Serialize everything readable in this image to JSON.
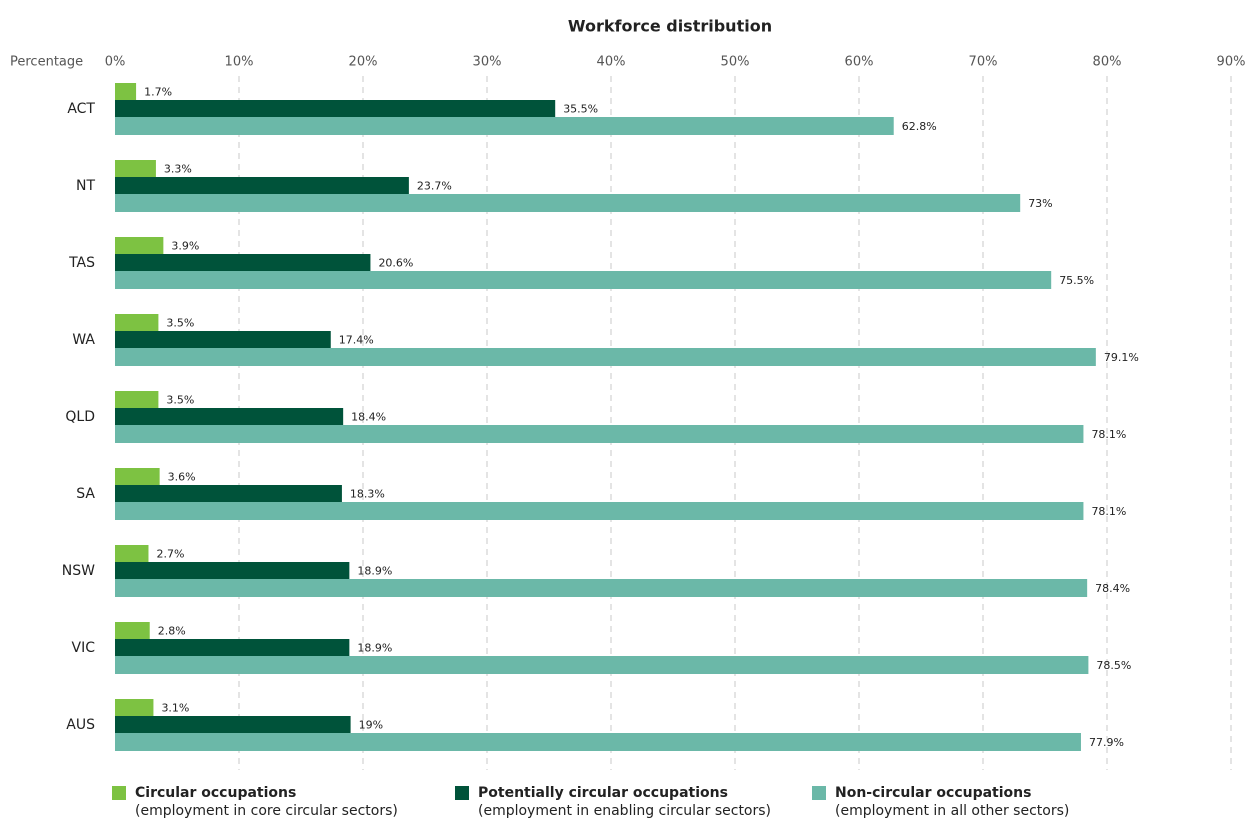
{
  "chart_data": {
    "type": "bar",
    "orientation": "horizontal",
    "title": "Workforce distribution",
    "x_label": "Percentage",
    "categories": [
      "ACT",
      "NT",
      "TAS",
      "WA",
      "QLD",
      "SA",
      "NSW",
      "VIC",
      "AUS"
    ],
    "series": [
      {
        "name": "Circular occupations",
        "description": "(employment in core circular sectors)",
        "color": "#7dc242",
        "values": [
          1.7,
          3.3,
          3.9,
          3.5,
          3.5,
          3.6,
          2.7,
          2.8,
          3.1
        ],
        "value_labels": [
          "1.7%",
          "3.3%",
          "3.9%",
          "3.5%",
          "3.5%",
          "3.6%",
          "2.7%",
          "2.8%",
          "3.1%"
        ]
      },
      {
        "name": "Potentially circular occupations",
        "description": "(employment in enabling circular sectors)",
        "color": "#00533a",
        "values": [
          35.5,
          23.7,
          20.6,
          17.4,
          18.4,
          18.3,
          18.9,
          18.9,
          19
        ],
        "value_labels": [
          "35.5%",
          "23.7%",
          "20.6%",
          "17.4%",
          "18.4%",
          "18.3%",
          "18.9%",
          "18.9%",
          "19%"
        ]
      },
      {
        "name": "Non-circular occupations",
        "description": "(employment in all other sectors)",
        "color": "#6bb8a8",
        "values": [
          62.8,
          73,
          75.5,
          79.1,
          78.1,
          78.1,
          78.4,
          78.5,
          77.9
        ],
        "value_labels": [
          "62.8%",
          "73%",
          "75.5%",
          "79.1%",
          "78.1%",
          "78.1%",
          "78.4%",
          "78.5%",
          "77.9%"
        ]
      }
    ],
    "xlim": [
      0,
      90
    ],
    "xticks": [
      {
        "value": 0,
        "label": "0%"
      },
      {
        "value": 10,
        "label": "10%"
      },
      {
        "value": 20,
        "label": "20%"
      },
      {
        "value": 30,
        "label": "30%"
      },
      {
        "value": 40,
        "label": "40%"
      },
      {
        "value": 50,
        "label": "50%"
      },
      {
        "value": 60,
        "label": "60%"
      },
      {
        "value": 70,
        "label": "70%"
      },
      {
        "value": 80,
        "label": "80%"
      },
      {
        "value": 90,
        "label": "90%"
      }
    ],
    "grid": true,
    "legend": "bottom"
  }
}
